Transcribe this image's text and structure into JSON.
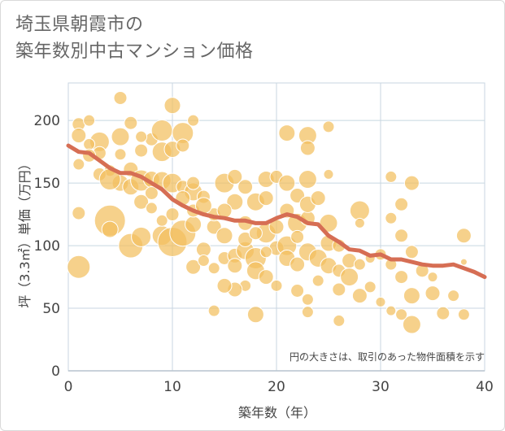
{
  "title": {
    "line1": "埼玉県朝霞市の",
    "line2": "築年数別中古マンション価格"
  },
  "chart_data": {
    "type": "scatter",
    "xlabel": "築年数（年）",
    "ylabel": "坪（3.3㎡）単価（万円）",
    "xlim": [
      0,
      40
    ],
    "ylim": [
      0,
      230
    ],
    "xticks": [
      "0",
      "10",
      "20",
      "30",
      "40"
    ],
    "yticks": [
      "0",
      "50",
      "100",
      "150",
      "200"
    ],
    "annotation": "円の大きさは、取引のあった物件面積を示す",
    "grid": true,
    "colors": {
      "bubble": "#f2bf5e",
      "bubble_stroke": "#ffffff",
      "trend": "#d66e54",
      "grid": "#c8d6e0"
    },
    "bubbles": [
      [
        1,
        197,
        8
      ],
      [
        2,
        200,
        7
      ],
      [
        5,
        218,
        8
      ],
      [
        10,
        212,
        10
      ],
      [
        12,
        200,
        7
      ],
      [
        3,
        183,
        12
      ],
      [
        5,
        187,
        11
      ],
      [
        6,
        198,
        8
      ],
      [
        8,
        185,
        8
      ],
      [
        7,
        187,
        7
      ],
      [
        9,
        192,
        13
      ],
      [
        11,
        190,
        13
      ],
      [
        1,
        188,
        9
      ],
      [
        2,
        181,
        7
      ],
      [
        7,
        176,
        8
      ],
      [
        9,
        175,
        12
      ],
      [
        10,
        177,
        10
      ],
      [
        11,
        180,
        8
      ],
      [
        5,
        173,
        7
      ],
      [
        3,
        174,
        8
      ],
      [
        1,
        165,
        7
      ],
      [
        2,
        172,
        8
      ],
      [
        4,
        160,
        7
      ],
      [
        6,
        161,
        9
      ],
      [
        3,
        157,
        8
      ],
      [
        5,
        150,
        10
      ],
      [
        4,
        153,
        13
      ],
      [
        6,
        147,
        10
      ],
      [
        7,
        152,
        13
      ],
      [
        8,
        153,
        10
      ],
      [
        9,
        152,
        11
      ],
      [
        10,
        150,
        12
      ],
      [
        11,
        147,
        8
      ],
      [
        12,
        143,
        11
      ],
      [
        13,
        139,
        8
      ],
      [
        12,
        150,
        8
      ],
      [
        8,
        142,
        8
      ],
      [
        7,
        135,
        9
      ],
      [
        1,
        126,
        8
      ],
      [
        4,
        120,
        19
      ],
      [
        4,
        113,
        10
      ],
      [
        6,
        100,
        15
      ],
      [
        7,
        107,
        12
      ],
      [
        9,
        108,
        12
      ],
      [
        10,
        103,
        18
      ],
      [
        11,
        110,
        16
      ],
      [
        12,
        117,
        10
      ],
      [
        13,
        97,
        9
      ],
      [
        14,
        115,
        9
      ],
      [
        15,
        108,
        10
      ],
      [
        12,
        83,
        9
      ],
      [
        13,
        88,
        7
      ],
      [
        14,
        82,
        7
      ],
      [
        15,
        90,
        8
      ],
      [
        16,
        92,
        9
      ],
      [
        17,
        96,
        11
      ],
      [
        18,
        90,
        13
      ],
      [
        19,
        110,
        12
      ],
      [
        20,
        98,
        9
      ],
      [
        21,
        100,
        12
      ],
      [
        15,
        150,
        12
      ],
      [
        16,
        155,
        9
      ],
      [
        17,
        147,
        9
      ],
      [
        18,
        135,
        11
      ],
      [
        19,
        138,
        9
      ],
      [
        19,
        153,
        10
      ],
      [
        20,
        155,
        8
      ],
      [
        21,
        150,
        10
      ],
      [
        21,
        128,
        9
      ],
      [
        22,
        140,
        9
      ],
      [
        22,
        118,
        12
      ],
      [
        23,
        122,
        9
      ],
      [
        23,
        133,
        10
      ],
      [
        24,
        138,
        9
      ],
      [
        25,
        118,
        11
      ],
      [
        23,
        153,
        11
      ],
      [
        21,
        190,
        10
      ],
      [
        23,
        188,
        11
      ],
      [
        23,
        178,
        9
      ],
      [
        25,
        195,
        7
      ],
      [
        25,
        157,
        6
      ],
      [
        22,
        107,
        8
      ],
      [
        23,
        95,
        11
      ],
      [
        24,
        90,
        11
      ],
      [
        25,
        84,
        10
      ],
      [
        26,
        80,
        8
      ],
      [
        27,
        75,
        11
      ],
      [
        28,
        128,
        12
      ],
      [
        28,
        118,
        6
      ],
      [
        29,
        67,
        7
      ],
      [
        31,
        155,
        7
      ],
      [
        31,
        122,
        7
      ],
      [
        32,
        133,
        8
      ],
      [
        32,
        108,
        8
      ],
      [
        31,
        85,
        7
      ],
      [
        32,
        75,
        8
      ],
      [
        33,
        150,
        9
      ],
      [
        33,
        95,
        8
      ],
      [
        33,
        60,
        10
      ],
      [
        31,
        48,
        6
      ],
      [
        33,
        37,
        11
      ],
      [
        35,
        62,
        9
      ],
      [
        36,
        46,
        8
      ],
      [
        38,
        108,
        9
      ],
      [
        38,
        87,
        4
      ],
      [
        38,
        45,
        7
      ],
      [
        17,
        118,
        9
      ],
      [
        18,
        45,
        10
      ],
      [
        17,
        68,
        7
      ],
      [
        16,
        65,
        9
      ],
      [
        14,
        48,
        7
      ],
      [
        15,
        68,
        9
      ],
      [
        16,
        84,
        9
      ],
      [
        18,
        80,
        11
      ],
      [
        19,
        75,
        9
      ],
      [
        20,
        68,
        7
      ],
      [
        22,
        64,
        8
      ],
      [
        23,
        57,
        7
      ],
      [
        23,
        47,
        7
      ],
      [
        26,
        40,
        7
      ],
      [
        27,
        88,
        9
      ],
      [
        28,
        85,
        7
      ],
      [
        29,
        90,
        6
      ],
      [
        30,
        93,
        7
      ],
      [
        25,
        102,
        10
      ],
      [
        26,
        100,
        8
      ],
      [
        1,
        83,
        14
      ],
      [
        14,
        125,
        8
      ],
      [
        16,
        135,
        10
      ],
      [
        15,
        128,
        9
      ],
      [
        12,
        128,
        8
      ],
      [
        13,
        132,
        10
      ],
      [
        11,
        138,
        9
      ],
      [
        9,
        120,
        7
      ],
      [
        10,
        125,
        8
      ],
      [
        8,
        130,
        7
      ],
      [
        17,
        105,
        9
      ],
      [
        18,
        110,
        8
      ],
      [
        20,
        115,
        9
      ],
      [
        19,
        95,
        7
      ],
      [
        21,
        90,
        10
      ],
      [
        22,
        85,
        9
      ],
      [
        24,
        72,
        7
      ],
      [
        26,
        65,
        8
      ],
      [
        28,
        60,
        9
      ],
      [
        30,
        55,
        6
      ],
      [
        32,
        45,
        7
      ],
      [
        34,
        80,
        8
      ],
      [
        35,
        75,
        6
      ],
      [
        37,
        60,
        7
      ]
    ],
    "trend": [
      [
        0,
        180
      ],
      [
        1,
        175
      ],
      [
        2,
        174
      ],
      [
        3,
        168
      ],
      [
        4,
        162
      ],
      [
        5,
        158
      ],
      [
        6,
        158
      ],
      [
        7,
        155
      ],
      [
        8,
        150
      ],
      [
        9,
        145
      ],
      [
        10,
        137
      ],
      [
        11,
        132
      ],
      [
        12,
        128
      ],
      [
        13,
        125
      ],
      [
        14,
        123
      ],
      [
        15,
        122
      ],
      [
        16,
        120
      ],
      [
        17,
        120
      ],
      [
        18,
        118
      ],
      [
        19,
        118
      ],
      [
        20,
        122
      ],
      [
        21,
        125
      ],
      [
        22,
        123
      ],
      [
        23,
        118
      ],
      [
        24,
        117
      ],
      [
        25,
        108
      ],
      [
        26,
        103
      ],
      [
        27,
        97
      ],
      [
        28,
        96
      ],
      [
        29,
        92
      ],
      [
        30,
        93
      ],
      [
        31,
        89
      ],
      [
        32,
        89
      ],
      [
        33,
        87
      ],
      [
        34,
        85
      ],
      [
        35,
        84
      ],
      [
        36,
        84
      ],
      [
        37,
        85
      ],
      [
        38,
        82
      ],
      [
        39,
        79
      ],
      [
        40,
        75
      ]
    ]
  }
}
